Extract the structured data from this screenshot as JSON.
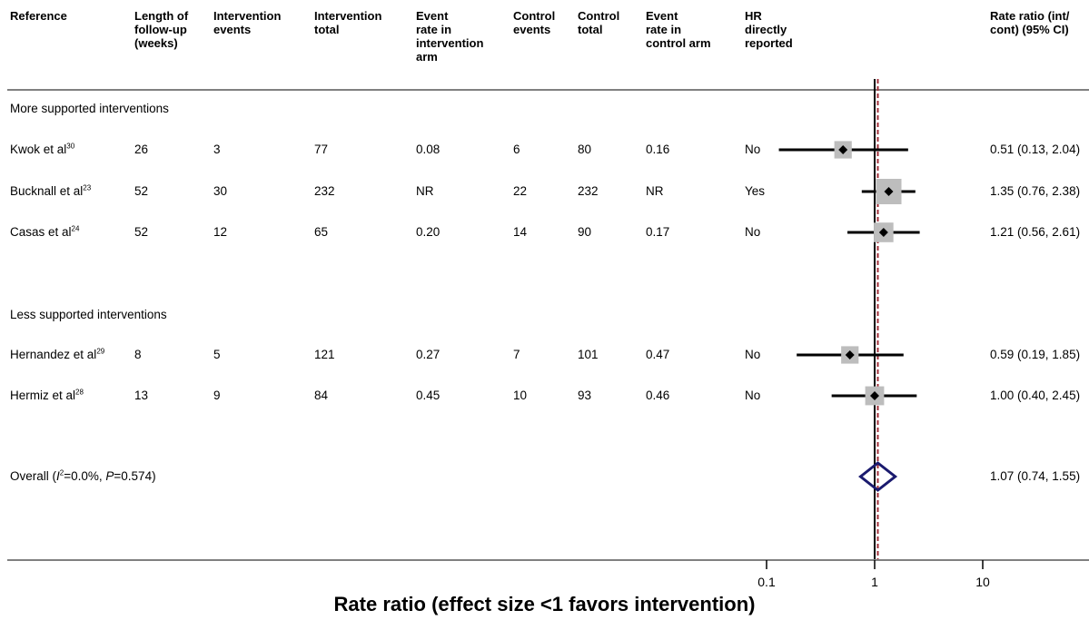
{
  "headers": {
    "reference": "Reference",
    "followup": "Length of\nfollow-up\n(weeks)",
    "int_events": "Intervention\nevents",
    "int_total": "Intervention\ntotal",
    "int_rate": "Event\nrate in\nintervention\narm",
    "ctrl_events": "Control\nevents",
    "ctrl_total": "Control\ntotal",
    "ctrl_rate": "Event\nrate in\ncontrol arm",
    "hr": "HR\ndirectly\nreported",
    "rr": "Rate ratio (int/\ncont) (95% CI)"
  },
  "sections": {
    "more": "More supported interventions",
    "less": "Less supported interventions"
  },
  "rows": [
    {
      "ref": "Kwok et al",
      "sup": "30",
      "followup": "26",
      "int_events": "3",
      "int_total": "77",
      "int_rate": "0.08",
      "ctrl_events": "6",
      "ctrl_total": "80",
      "ctrl_rate": "0.16",
      "hr": "No",
      "rr_text": "0.51 (0.13, 2.04)"
    },
    {
      "ref": "Bucknall et al",
      "sup": "23",
      "followup": "52",
      "int_events": "30",
      "int_total": "232",
      "int_rate": "NR",
      "ctrl_events": "22",
      "ctrl_total": "232",
      "ctrl_rate": "NR",
      "hr": "Yes",
      "rr_text": "1.35 (0.76, 2.38)"
    },
    {
      "ref": "Casas et al",
      "sup": "24",
      "followup": "52",
      "int_events": "12",
      "int_total": "65",
      "int_rate": "0.20",
      "ctrl_events": "14",
      "ctrl_total": "90",
      "ctrl_rate": "0.17",
      "hr": "No",
      "rr_text": "1.21 (0.56, 2.61)"
    },
    {
      "ref": "Hernandez et al",
      "sup": "29",
      "followup": "8",
      "int_events": "5",
      "int_total": "121",
      "int_rate": "0.27",
      "ctrl_events": "7",
      "ctrl_total": "101",
      "ctrl_rate": "0.47",
      "hr": "No",
      "rr_text": "0.59 (0.19, 1.85)"
    },
    {
      "ref": "Hermiz et al",
      "sup": "28",
      "followup": "13",
      "int_events": "9",
      "int_total": "84",
      "int_rate": "0.45",
      "ctrl_events": "10",
      "ctrl_total": "93",
      "ctrl_rate": "0.46",
      "hr": "No",
      "rr_text": "1.00 (0.40, 2.45)"
    }
  ],
  "overall": {
    "label_prefix": "Overall  (",
    "i2_symbol": "I",
    "i2_sup": "2",
    "i2_value": "=0.0%, ",
    "p_symbol": "P",
    "p_value": "=0.574)",
    "rr_text": "1.07 (0.74, 1.55)"
  },
  "chart_data": {
    "type": "forest",
    "xlabel": "Rate ratio (effect size <1 favors intervention)",
    "xscale": "log",
    "xlim": [
      0.1,
      10
    ],
    "ticks": [
      0.1,
      1,
      10
    ],
    "tick_labels": [
      "0.1",
      "1",
      "10"
    ],
    "null_line": 1,
    "pooled_line": 1.07,
    "studies": [
      {
        "name": "Kwok et al",
        "rr": 0.51,
        "lo": 0.13,
        "hi": 2.04,
        "weight": 0.45
      },
      {
        "name": "Bucknall et al",
        "rr": 1.35,
        "lo": 0.76,
        "hi": 2.38,
        "weight": 1.0
      },
      {
        "name": "Casas et al",
        "rr": 1.21,
        "lo": 0.56,
        "hi": 2.61,
        "weight": 0.6
      },
      {
        "name": "Hernandez et al",
        "rr": 0.59,
        "lo": 0.19,
        "hi": 1.85,
        "weight": 0.45
      },
      {
        "name": "Hermiz et al",
        "rr": 1.0,
        "lo": 0.4,
        "hi": 2.45,
        "weight": 0.55
      }
    ],
    "overall": {
      "rr": 1.07,
      "lo": 0.74,
      "hi": 1.55
    },
    "colors": {
      "ci": "#000000",
      "box": "#bdbdbd",
      "diamond": "#1a1a6e",
      "pooled_line": "#a0303a"
    }
  }
}
